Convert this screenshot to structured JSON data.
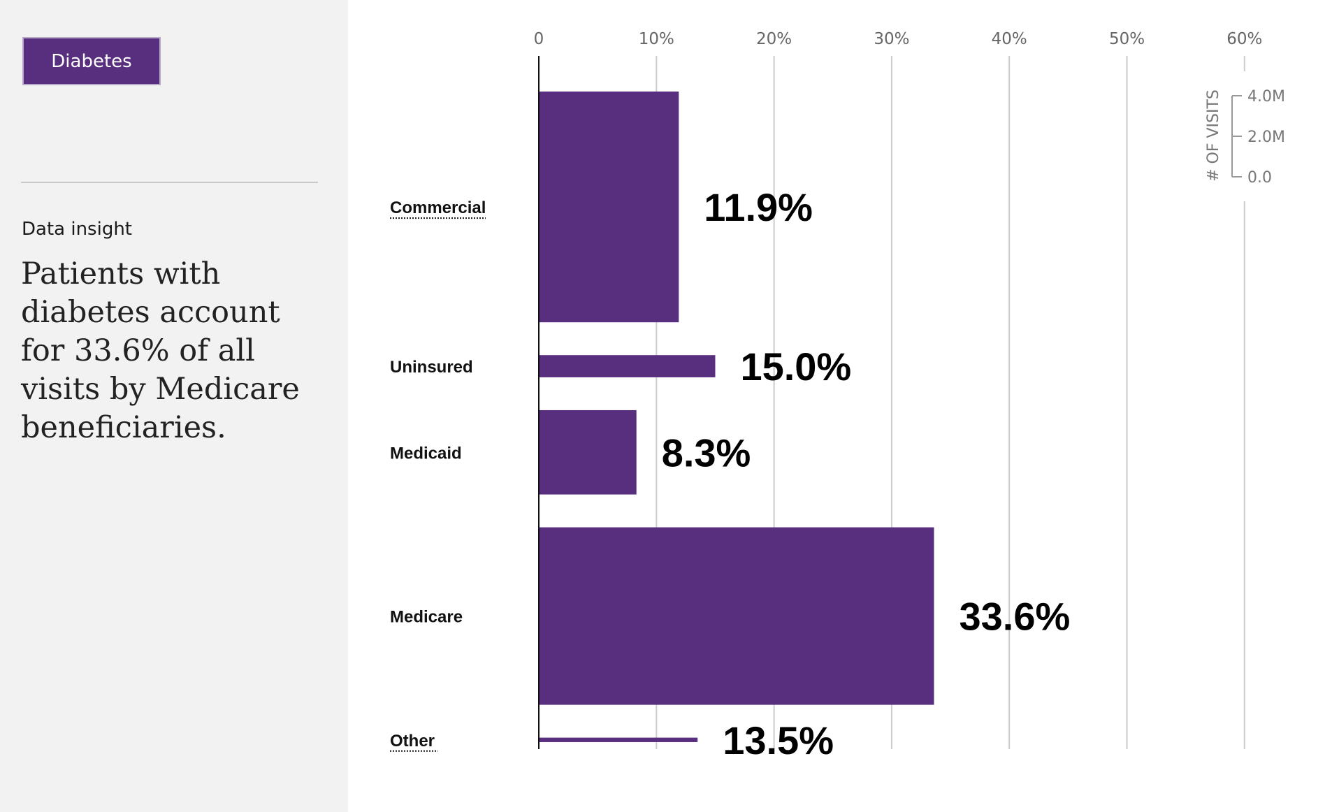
{
  "topic_button": {
    "label": "Diabetes"
  },
  "insight": {
    "heading": "Data insight",
    "body": "Patients with diabetes account for 33.6% of all visits by Medicare beneficiaries."
  },
  "colors": {
    "bar": "#582e7f",
    "grid": "#cccccc",
    "axis": "#111111"
  },
  "chart_data": {
    "type": "bar",
    "orientation": "horizontal",
    "categories": [
      "Commercial",
      "Uninsured",
      "Medicaid",
      "Medicare",
      "Other"
    ],
    "values": [
      11.9,
      15.0,
      8.3,
      33.6,
      13.5
    ],
    "value_labels": [
      "11.9%",
      "15.0%",
      "8.3%",
      "33.6%",
      "13.5%"
    ],
    "category_underlined": [
      true,
      false,
      false,
      false,
      true
    ],
    "visits_millions": [
      5.2,
      0.5,
      1.9,
      4.0,
      0.1
    ],
    "xlim": [
      0,
      60
    ],
    "x_ticks": [
      "0",
      "10%",
      "20%",
      "30%",
      "40%",
      "50%",
      "60%"
    ],
    "grid": true,
    "size_legend": {
      "title": "# OF VISITS",
      "ticks": [
        "4.0M",
        "2.0M",
        "0.0"
      ],
      "tick_values": [
        4,
        2,
        0
      ]
    }
  }
}
